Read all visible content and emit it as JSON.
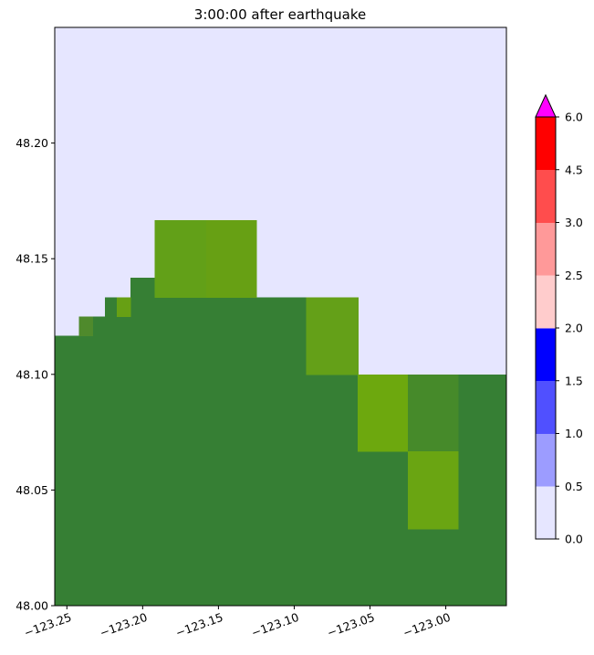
{
  "chart_data": {
    "type": "heatmap",
    "title": "3:00:00 after earthquake",
    "xlabel": "",
    "ylabel": "",
    "xlim": [
      -123.258,
      -122.96
    ],
    "ylim": [
      48.0,
      48.25
    ],
    "x_ticks": [
      {
        "value": -123.25,
        "label": "−123.25"
      },
      {
        "value": -123.2,
        "label": "−123.20"
      },
      {
        "value": -123.15,
        "label": "−123.15"
      },
      {
        "value": -123.1,
        "label": "−123.10"
      },
      {
        "value": -123.05,
        "label": "−123.05"
      },
      {
        "value": -123.0,
        "label": "−123.00"
      }
    ],
    "y_ticks": [
      {
        "value": 48.0,
        "label": "48.00"
      },
      {
        "value": 48.05,
        "label": "48.05"
      },
      {
        "value": 48.1,
        "label": "48.10"
      },
      {
        "value": 48.15,
        "label": "48.15"
      },
      {
        "value": 48.2,
        "label": "48.20"
      }
    ],
    "grid": false,
    "background_color": "#e6e6ff",
    "cells": [
      {
        "lon0": -123.258,
        "lon1": -122.96,
        "lat0": 48.0,
        "lat1": 48.1,
        "color": "#367f34"
      },
      {
        "lon0": -123.258,
        "lon1": -123.075,
        "lat0": 48.1,
        "lat1": 48.1167,
        "color": "#367f34"
      },
      {
        "lon0": -123.242,
        "lon1": -123.075,
        "lat0": 48.1167,
        "lat1": 48.125,
        "color": "#367f34"
      },
      {
        "lon0": -123.225,
        "lon1": -123.075,
        "lat0": 48.125,
        "lat1": 48.1333,
        "color": "#367f34"
      },
      {
        "lon0": -123.208,
        "lon1": -123.192,
        "lat0": 48.1333,
        "lat1": 48.1417,
        "color": "#367f34"
      },
      {
        "lon0": -123.242,
        "lon1": -123.233,
        "lat0": 48.1167,
        "lat1": 48.125,
        "color": "#4f8a2c"
      },
      {
        "lon0": -123.217,
        "lon1": -123.208,
        "lat0": 48.125,
        "lat1": 48.1333,
        "color": "#67a014"
      },
      {
        "lon0": -123.192,
        "lon1": -123.158,
        "lat0": 48.1333,
        "lat1": 48.1667,
        "color": "#62a018"
      },
      {
        "lon0": -123.158,
        "lon1": -123.125,
        "lat0": 48.1333,
        "lat1": 48.1667,
        "color": "#67a014"
      },
      {
        "lon0": -123.092,
        "lon1": -123.058,
        "lat0": 48.1,
        "lat1": 48.1333,
        "color": "#64a018"
      },
      {
        "lon0": -123.058,
        "lon1": -123.025,
        "lat0": 48.0667,
        "lat1": 48.1,
        "color": "#6da80e"
      },
      {
        "lon0": -123.025,
        "lon1": -122.992,
        "lat0": 48.0667,
        "lat1": 48.1,
        "color": "#468a2a"
      },
      {
        "lon0": -123.025,
        "lon1": -122.992,
        "lat0": 48.0333,
        "lat1": 48.0667,
        "color": "#6aa512"
      }
    ],
    "colorbar": {
      "boundaries": [
        0.0,
        0.5,
        1.0,
        1.5,
        2.0,
        2.5,
        3.0,
        4.5,
        6.0
      ],
      "tick_labels": [
        "0.0",
        "0.5",
        "1.0",
        "1.5",
        "2.0",
        "2.5",
        "3.0",
        "4.5",
        "6.0"
      ],
      "colors": [
        "#e6e6ff",
        "#9c9cff",
        "#5050ff",
        "#0000ff",
        "#ffcccc",
        "#ff9999",
        "#ff4d4d",
        "#ff0000"
      ],
      "extend_max_color": "#ff00ff"
    }
  }
}
